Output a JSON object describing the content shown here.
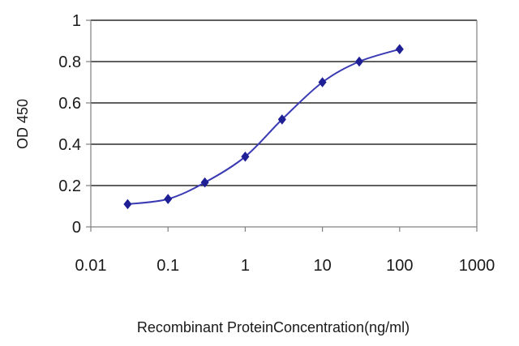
{
  "chart_data": {
    "type": "line",
    "title": "",
    "xlabel": "Recombinant ProteinConcentration(ng/ml)",
    "ylabel": "OD 450",
    "xscale": "log",
    "xlim": [
      0.01,
      1000
    ],
    "ylim": [
      0,
      1
    ],
    "grid": "horizontal",
    "legend": "none",
    "x_ticks": [
      "0.01",
      "0.1",
      "1",
      "10",
      "100",
      "1000"
    ],
    "y_ticks": [
      "0",
      "0.2",
      "0.4",
      "0.6",
      "0.8",
      "1"
    ],
    "series": [
      {
        "x": [
          0.03,
          0.1,
          0.3,
          1,
          3,
          10,
          30,
          100
        ],
        "y": [
          0.11,
          0.135,
          0.215,
          0.34,
          0.52,
          0.7,
          0.8,
          0.86
        ]
      }
    ],
    "colors": {
      "line": "#3a3ab4",
      "marker": "#1f1f96",
      "grid": "#000000",
      "axis": "#808080"
    }
  }
}
